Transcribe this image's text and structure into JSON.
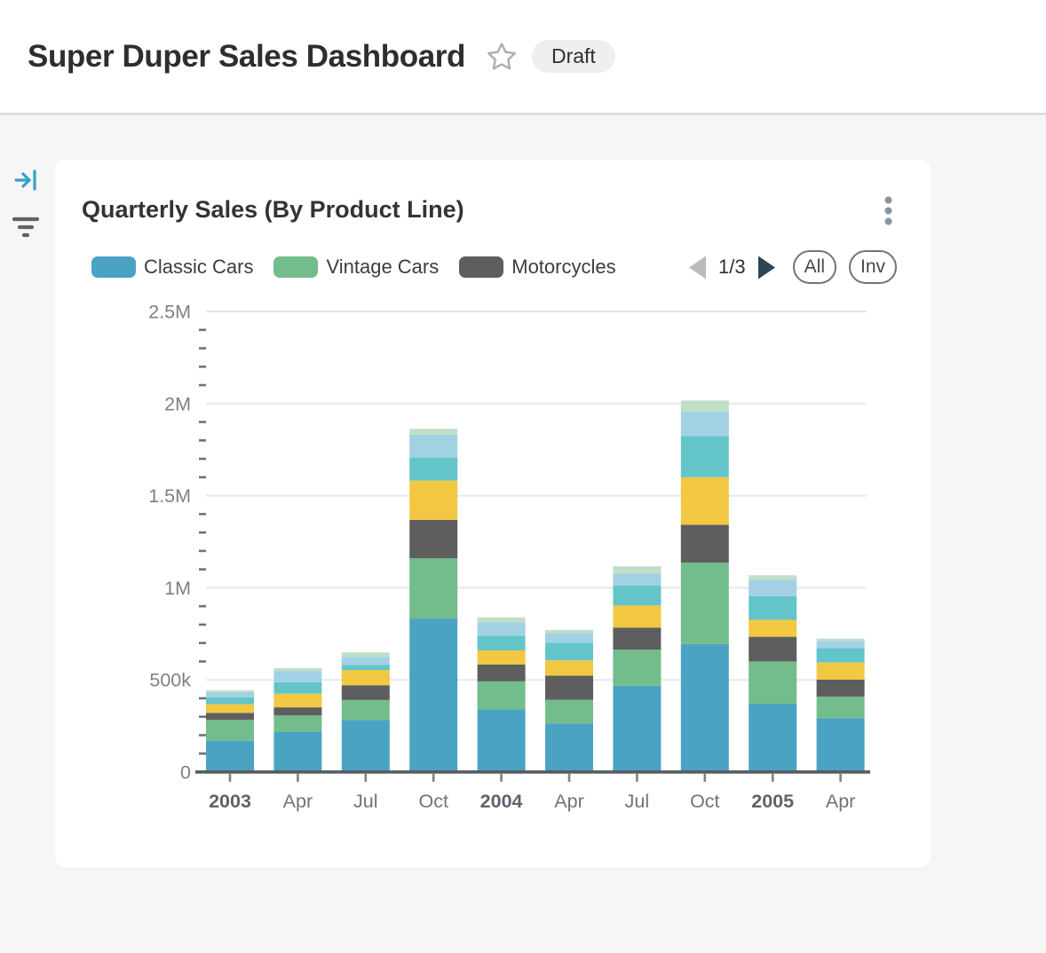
{
  "header": {
    "title": "Super Duper Sales Dashboard",
    "status_badge": "Draft"
  },
  "side_rail": {
    "icons": [
      "collapse-panel",
      "filter"
    ]
  },
  "card": {
    "title": "Quarterly Sales (By Product Line)",
    "menu_icon": "kebab-vertical",
    "legend": {
      "visible_items": [
        {
          "label": "Classic Cars",
          "color": "#4ba3c3"
        },
        {
          "label": "Vintage Cars",
          "color": "#73bc8b"
        },
        {
          "label": "Motorcycles",
          "color": "#5e5e5f"
        }
      ],
      "page_indicator": "1/3",
      "prev_enabled": false,
      "next_enabled": true,
      "prev_arrow_color": "#b9bcbf",
      "next_arrow_color": "#2d4455",
      "all_label": "All",
      "invert_label": "Inv"
    }
  },
  "chart_data": {
    "type": "bar",
    "stacked": true,
    "title": "Quarterly Sales (By Product Line)",
    "categories": [
      "2003",
      "Apr",
      "Jul",
      "Oct",
      "2004",
      "Apr",
      "Jul",
      "Oct",
      "2005",
      "Apr"
    ],
    "bold_category_indices": [
      0,
      4,
      8
    ],
    "xlabel": "",
    "ylabel": "",
    "y_axis": {
      "min": 0,
      "max": 2500000,
      "major_step": 500000,
      "minor_step": 100000,
      "tick_labels": [
        "0",
        "500k",
        "1M",
        "1.5M",
        "2M",
        "2.5M"
      ]
    },
    "grid": true,
    "legend_position": "top",
    "series": [
      {
        "name": "Classic Cars",
        "color": "#4ba3c3",
        "values": [
          170000,
          217000,
          283000,
          833000,
          340000,
          264000,
          468000,
          694000,
          371000,
          292000
        ]
      },
      {
        "name": "Vintage Cars",
        "color": "#73bc8b",
        "values": [
          113000,
          90000,
          108000,
          327000,
          152000,
          128000,
          196000,
          443000,
          229000,
          117000
        ]
      },
      {
        "name": "Motorcycles",
        "color": "#5e5e5f",
        "values": [
          38000,
          44000,
          80000,
          209000,
          91000,
          131000,
          120000,
          205000,
          134000,
          92000
        ]
      },
      {
        "name": "(yellow series)",
        "color": "#f2c843",
        "values": [
          47000,
          74000,
          82000,
          213000,
          77000,
          83000,
          120000,
          258000,
          92000,
          93000
        ]
      },
      {
        "name": "(teal series)",
        "color": "#63c5c9",
        "values": [
          38000,
          63000,
          28000,
          125000,
          80000,
          96000,
          109000,
          223000,
          129000,
          79000
        ]
      },
      {
        "name": "(light blue series)",
        "color": "#a2d1e3",
        "values": [
          28000,
          59000,
          44000,
          124000,
          72000,
          53000,
          64000,
          134000,
          89000,
          39000
        ]
      },
      {
        "name": "(light green series)",
        "color": "#c0dfc6",
        "values": [
          9000,
          17000,
          24000,
          32000,
          27000,
          16000,
          40000,
          60000,
          24000,
          12000
        ]
      }
    ]
  },
  "colors": {
    "page_background": "#f6f6f6",
    "card_background": "#ffffff",
    "gridline": "#e5e8f0",
    "axis_baseline": "#565b60",
    "axis_text": "#7c8187",
    "rail_collapse_icon": "#35a0c8",
    "rail_filter_icon": "#5f6368",
    "kebab_icon": "#8a939c",
    "star_icon": "#adadad"
  }
}
